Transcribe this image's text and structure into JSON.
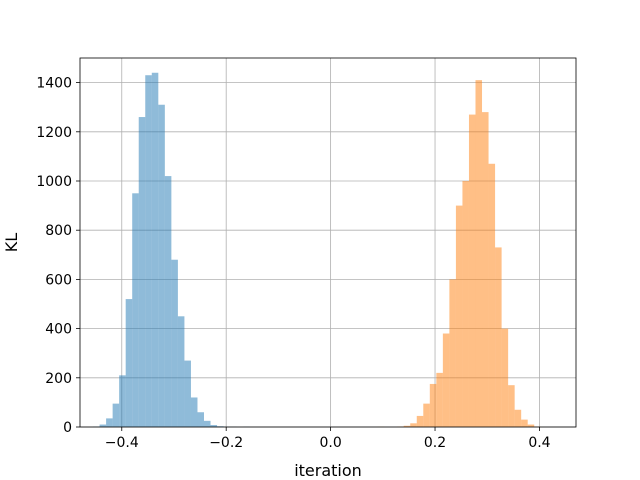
{
  "chart_data": {
    "type": "histogram",
    "xlabel": "iteration",
    "ylabel": "KL",
    "xlim": [
      -0.48,
      0.47
    ],
    "ylim": [
      0,
      1500
    ],
    "x_ticks": [
      -0.4,
      -0.2,
      0.0,
      0.2,
      0.4
    ],
    "x_tick_labels": [
      "−0.4",
      "−0.2",
      "0.0",
      "0.2",
      "0.4"
    ],
    "y_ticks": [
      0,
      200,
      400,
      600,
      800,
      1000,
      1200,
      1400
    ],
    "y_tick_labels": [
      "0",
      "200",
      "400",
      "600",
      "800",
      "1000",
      "1200",
      "1400"
    ],
    "grid": true,
    "bin_width": 0.0125,
    "series": [
      {
        "color": "#1f77b4",
        "opacity": 0.5,
        "bin_start": -0.455,
        "counts": [
          2,
          10,
          35,
          95,
          210,
          520,
          950,
          1260,
          1430,
          1440,
          1310,
          1020,
          680,
          450,
          270,
          120,
          60,
          25,
          8,
          3,
          1,
          1,
          0,
          1
        ]
      },
      {
        "color": "#ff7f0e",
        "opacity": 0.5,
        "bin_start": 0.09,
        "counts": [
          1,
          0,
          0,
          2,
          5,
          15,
          45,
          95,
          175,
          220,
          380,
          600,
          900,
          1000,
          1270,
          1410,
          1280,
          1070,
          730,
          400,
          170,
          70,
          30,
          10,
          2
        ]
      }
    ]
  }
}
